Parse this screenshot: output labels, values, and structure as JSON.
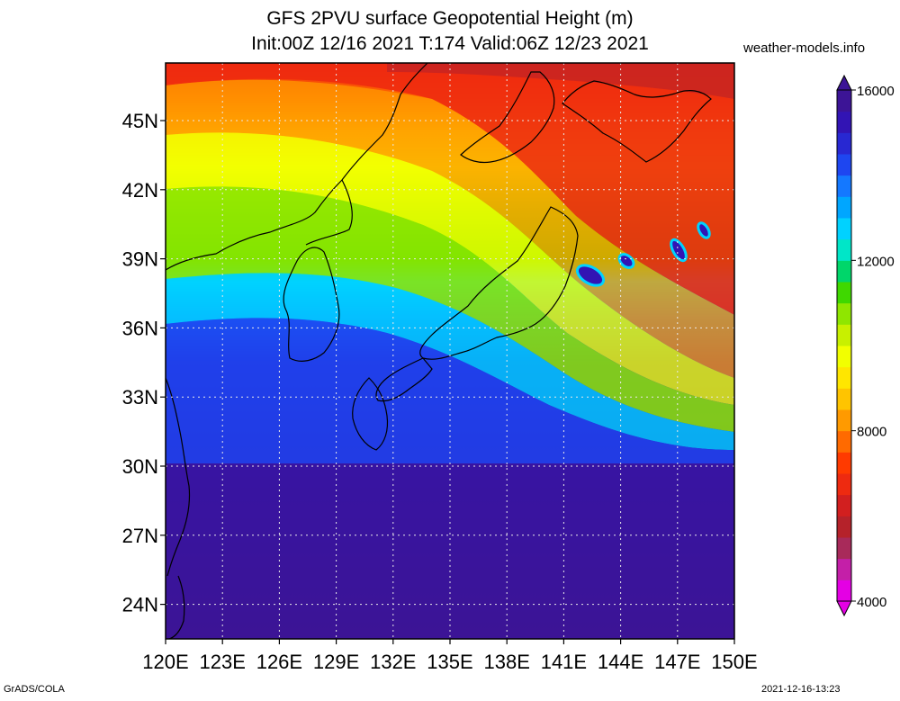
{
  "title": {
    "line1": "GFS 2PVU surface Geopotential Height (m)",
    "line2": "Init:00Z 12/16 2021 T:174 Valid:06Z 12/23 2021"
  },
  "credit": "weather-models.info",
  "footer": {
    "left": "GrADS/COLA",
    "right": "2021-12-16-13:23"
  },
  "map": {
    "lat_labels": [
      "45N",
      "42N",
      "39N",
      "36N",
      "33N",
      "30N",
      "27N",
      "24N"
    ],
    "lon_labels": [
      "120E",
      "123E",
      "126E",
      "129E",
      "132E",
      "135E",
      "138E",
      "141E",
      "144E",
      "147E",
      "150E"
    ],
    "lat_range": [
      22.5,
      47.5
    ],
    "lon_range": [
      120,
      150
    ]
  },
  "colorbar": {
    "labels": [
      "16000",
      "12000",
      "8000",
      "4000"
    ],
    "min": 4000,
    "max": 16000,
    "colors": [
      "#e400e4",
      "#c41fa8",
      "#a82a5a",
      "#b5222a",
      "#d21f1f",
      "#ee2a10",
      "#ff3a00",
      "#ff6a00",
      "#ff9a00",
      "#ffc400",
      "#ffe600",
      "#f2ff00",
      "#c8f000",
      "#8fe600",
      "#3fd800",
      "#00d66a",
      "#00e6c8",
      "#00d2ff",
      "#00a6ff",
      "#1478ff",
      "#1e46f0",
      "#2828d2",
      "#3214b4",
      "#3c1496"
    ]
  }
}
